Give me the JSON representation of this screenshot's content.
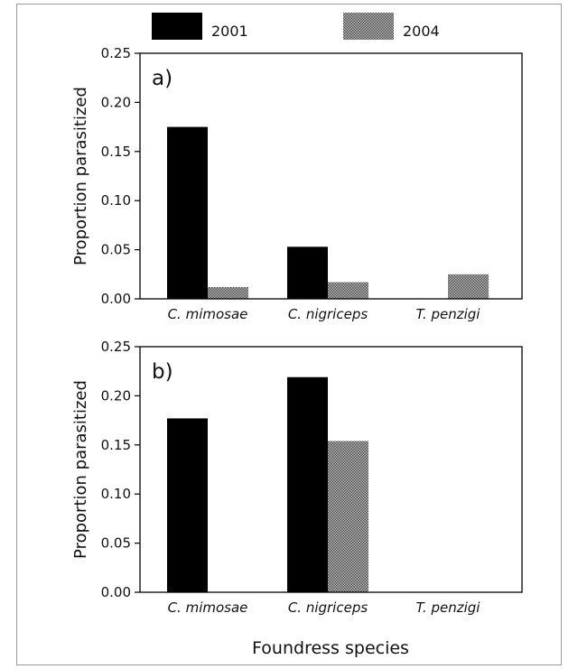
{
  "legend": [
    {
      "label": "2001",
      "color": "#000000",
      "pattern": "solid"
    },
    {
      "label": "2004",
      "color": "#8c8c8c",
      "pattern": "hatched"
    }
  ],
  "xlabel": "Foundress species",
  "chart_data": [
    {
      "type": "bar",
      "panel_label": "a)",
      "ylabel": "Proportion parasitized",
      "ylim": [
        0,
        0.25
      ],
      "yticks": [
        "0.00",
        "0.05",
        "0.10",
        "0.15",
        "0.20",
        "0.25"
      ],
      "categories": [
        "C. mimosae",
        "C. nigriceps",
        "T. penzigi"
      ],
      "series": [
        {
          "name": "2001",
          "values": [
            0.175,
            0.053,
            0.0
          ]
        },
        {
          "name": "2004",
          "values": [
            0.012,
            0.017,
            0.025
          ]
        }
      ],
      "grid": false,
      "legend_position": "top"
    },
    {
      "type": "bar",
      "panel_label": "b)",
      "ylabel": "Proportion parasitized",
      "ylim": [
        0,
        0.25
      ],
      "yticks": [
        "0.00",
        "0.05",
        "0.10",
        "0.15",
        "0.20",
        "0.25"
      ],
      "categories": [
        "C. mimosae",
        "C. nigriceps",
        "T. penzigi"
      ],
      "series": [
        {
          "name": "2001",
          "values": [
            0.177,
            0.219,
            0.0
          ]
        },
        {
          "name": "2004",
          "values": [
            0.0,
            0.154,
            0.0
          ]
        }
      ],
      "grid": false,
      "legend_position": "top"
    }
  ]
}
